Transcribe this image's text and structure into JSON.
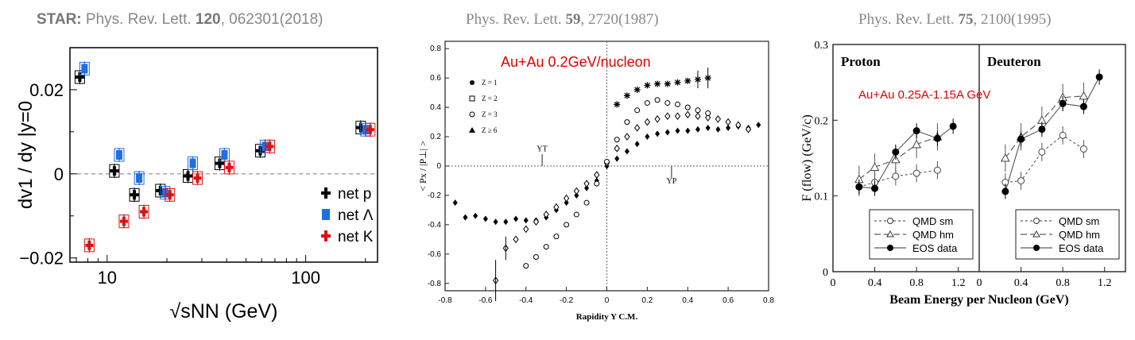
{
  "captions": [
    {
      "prefix": "STAR:",
      "journal": " Phys. Rev. Lett. ",
      "volume": "120",
      "rest": ", 062301(2018)"
    },
    {
      "prefix": "",
      "journal": "Phys. Rev. Lett. ",
      "volume": "59",
      "rest": ", 2720(1987)"
    },
    {
      "prefix": "",
      "journal": "Phys. Rev. Lett. ",
      "volume": "75",
      "rest": ", 2100(1995)"
    }
  ],
  "chart_data": [
    {
      "type": "scatter",
      "xscale": "log",
      "xlim": [
        6.5,
        230
      ],
      "ylim": [
        -0.021,
        0.03
      ],
      "xlabel": "√sNN (GeV)",
      "ylabel": "dv1 / dy |y=0",
      "xticks": [
        "10",
        "100"
      ],
      "yticks": [
        "0.02",
        "0",
        "−0.02"
      ],
      "legend_position": "bottom-right",
      "series": [
        {
          "name": "net p",
          "color": "#000000",
          "x": [
            7.7,
            11.5,
            14.5,
            19.6,
            27,
            39,
            62.4,
            200
          ],
          "y": [
            0.023,
            0.0007,
            -0.005,
            -0.004,
            -0.0005,
            0.0025,
            0.0055,
            0.011
          ]
        },
        {
          "name": "net Λ",
          "color": "#1f6fe0",
          "x": [
            7.7,
            11.5,
            14.5,
            19.6,
            27,
            39,
            62.4,
            200
          ],
          "y": [
            0.025,
            0.0045,
            -0.001,
            -0.0045,
            0.0025,
            0.0045,
            0.0065,
            0.0105
          ]
        },
        {
          "name": "net K",
          "color": "#e01010",
          "x": [
            7.7,
            11.5,
            14.5,
            19.6,
            27,
            39,
            62.4,
            200
          ],
          "y": [
            -0.017,
            -0.0113,
            -0.009,
            -0.005,
            -0.001,
            0.0015,
            0.0065,
            0.0105
          ]
        }
      ]
    },
    {
      "type": "scatter",
      "xlim": [
        -0.8,
        0.8
      ],
      "ylim": [
        -0.85,
        0.85
      ],
      "xlabel": "Rapidity Y C.M.",
      "ylabel": "< Px / |P⊥| >",
      "xticks": [
        "-0.8",
        "-0.6",
        "-0.4",
        "-0.2",
        "0",
        "0.2",
        "0.4",
        "0.6",
        "0.8"
      ],
      "yticks": [
        "0.8",
        "0.6",
        "0.4",
        "0.2",
        "0",
        "-0.2",
        "-0.4",
        "-0.6",
        "-0.8"
      ],
      "annotation": "Au+Au 0.2GeV/nucleon",
      "markers": [
        "YT",
        "YP"
      ],
      "legend": [
        "Z = 1",
        "Z = 2",
        "Z = 3",
        "Z ≥ 6"
      ],
      "series": [
        {
          "name": "Z = 1",
          "x": [
            -0.75,
            -0.7,
            -0.65,
            -0.6,
            -0.55,
            -0.5,
            -0.45,
            -0.4,
            -0.35,
            -0.3,
            -0.25,
            -0.2,
            -0.15,
            -0.1,
            -0.05,
            0.0,
            0.05,
            0.1,
            0.15,
            0.2,
            0.25,
            0.3,
            0.35,
            0.4,
            0.45,
            0.5,
            0.55,
            0.6,
            0.65,
            0.7,
            0.75
          ],
          "y": [
            -0.25,
            -0.35,
            -0.34,
            -0.36,
            -0.38,
            -0.38,
            -0.36,
            -0.37,
            -0.37,
            -0.35,
            -0.3,
            -0.25,
            -0.2,
            -0.15,
            -0.1,
            0.0,
            0.05,
            0.1,
            0.15,
            0.2,
            0.22,
            0.23,
            0.24,
            0.24,
            0.25,
            0.26,
            0.25,
            0.26,
            0.27,
            0.26,
            0.28
          ]
        },
        {
          "name": "Z = 2",
          "x": [
            -0.55,
            -0.5,
            -0.45,
            -0.4,
            -0.35,
            -0.3,
            -0.25,
            -0.2,
            -0.15,
            -0.1,
            -0.05,
            0.0,
            0.05,
            0.1,
            0.15,
            0.2,
            0.25,
            0.3,
            0.35,
            0.4,
            0.45,
            0.5,
            0.55,
            0.6,
            0.65,
            0.7
          ],
          "y": [
            -0.78,
            -0.56,
            -0.5,
            -0.43,
            -0.38,
            -0.33,
            -0.28,
            -0.22,
            -0.17,
            -0.12,
            -0.06,
            0.02,
            0.12,
            0.2,
            0.26,
            0.3,
            0.32,
            0.34,
            0.34,
            0.35,
            0.34,
            0.33,
            0.32,
            0.3,
            0.28,
            0.25
          ]
        },
        {
          "name": "Z = 3",
          "x": [
            -0.4,
            -0.35,
            -0.3,
            -0.25,
            -0.2,
            -0.15,
            -0.1,
            -0.05,
            0.0,
            0.05,
            0.1,
            0.15,
            0.2,
            0.25,
            0.3,
            0.35,
            0.4,
            0.45,
            0.5
          ],
          "y": [
            -0.68,
            -0.62,
            -0.55,
            -0.48,
            -0.4,
            -0.33,
            -0.25,
            -0.12,
            0.03,
            0.18,
            0.3,
            0.38,
            0.43,
            0.45,
            0.43,
            0.42,
            0.4,
            0.38,
            0.36
          ]
        },
        {
          "name": "Z ≥ 6",
          "x": [
            0.05,
            0.1,
            0.15,
            0.2,
            0.25,
            0.3,
            0.35,
            0.4,
            0.45,
            0.5
          ],
          "y": [
            0.42,
            0.48,
            0.52,
            0.55,
            0.56,
            0.56,
            0.57,
            0.58,
            0.59,
            0.6
          ]
        }
      ]
    },
    {
      "type": "line",
      "xlim": [
        0,
        1.4
      ],
      "ylim": [
        0,
        0.3
      ],
      "xlabel": "Beam Energy per Nucleon (GeV)",
      "ylabel": "F (flow) (GeV/c)",
      "xticks": [
        "0",
        "0.4",
        "0.8",
        "1.2"
      ],
      "yticks": [
        "0.3",
        "0.2",
        "0.1",
        "0"
      ],
      "panels": [
        "Proton",
        "Deuteron"
      ],
      "annotation": "Au+Au 0.25A-1.15A GeV",
      "legend": [
        "QMD sm",
        "QMD hm",
        "EOS data"
      ],
      "proton": {
        "eos_data": {
          "x": [
            0.25,
            0.4,
            0.6,
            0.8,
            1.0,
            1.15
          ],
          "y": [
            0.112,
            0.11,
            0.158,
            0.186,
            0.176,
            0.192
          ]
        },
        "qmd_sm": {
          "x": [
            0.25,
            0.4,
            0.6,
            0.8,
            1.0
          ],
          "y": [
            0.112,
            0.118,
            0.126,
            0.13,
            0.134
          ]
        },
        "qmd_hm": {
          "x": [
            0.25,
            0.4,
            0.6,
            0.8,
            1.0
          ],
          "y": [
            0.122,
            0.138,
            0.148,
            0.168,
            0.178
          ]
        }
      },
      "deuteron": {
        "eos_data": {
          "x": [
            0.25,
            0.4,
            0.6,
            0.8,
            1.0,
            1.15
          ],
          "y": [
            0.106,
            0.175,
            0.188,
            0.222,
            0.218,
            0.257
          ]
        },
        "qmd_sm": {
          "x": [
            0.25,
            0.4,
            0.6,
            0.8,
            1.0
          ],
          "y": [
            0.118,
            0.12,
            0.158,
            0.18,
            0.162
          ]
        },
        "qmd_hm": {
          "x": [
            0.25,
            0.4,
            0.6,
            0.8,
            1.0
          ],
          "y": [
            0.15,
            0.178,
            0.2,
            0.23,
            0.232
          ]
        }
      }
    }
  ]
}
